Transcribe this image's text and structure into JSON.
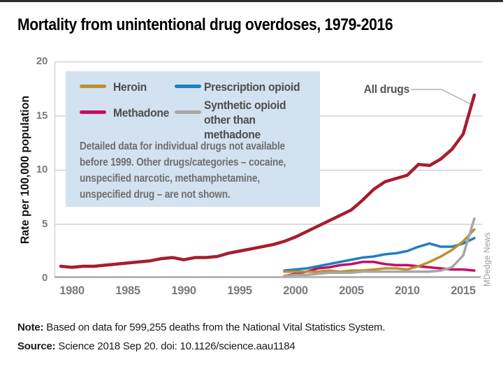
{
  "header": {
    "title": "Mortality from unintentional drug overdoses, 1979-2016"
  },
  "chart_data": {
    "type": "line",
    "title": "Mortality from unintentional drug overdoses, 1979-2016",
    "xlabel": "",
    "ylabel": "Rate per 100,000 population",
    "ylim": [
      0,
      20
    ],
    "y_ticks": [
      0,
      5,
      10,
      15,
      20
    ],
    "x_ticks": [
      1980,
      1985,
      1990,
      1995,
      2000,
      2005,
      2010,
      2015
    ],
    "xlim": [
      1979,
      2016
    ],
    "grid": true,
    "legend_position": "overlay top-left box",
    "annotation": {
      "label": "All drugs"
    },
    "series": [
      {
        "name": "Methadone",
        "color": "#c40d66",
        "start_year": 1999,
        "end_year": 2016,
        "values": [
          0.2,
          0.4,
          0.6,
          0.9,
          1.0,
          1.2,
          1.3,
          1.5,
          1.5,
          1.3,
          1.2,
          1.2,
          1.1,
          1.0,
          0.9,
          0.8,
          0.8,
          0.7
        ]
      },
      {
        "name": "Prescription opioid",
        "color": "#1f7fbf",
        "start_year": 1999,
        "end_year": 2016,
        "values": [
          0.7,
          0.8,
          0.9,
          1.1,
          1.3,
          1.5,
          1.7,
          1.9,
          2.0,
          2.2,
          2.3,
          2.5,
          2.9,
          3.2,
          2.9,
          2.9,
          3.2,
          3.7
        ]
      },
      {
        "name": "Heroin",
        "color": "#b9932f",
        "start_year": 1999,
        "end_year": 2016,
        "values": [
          0.6,
          0.6,
          0.6,
          0.6,
          0.7,
          0.6,
          0.7,
          0.7,
          0.8,
          0.9,
          0.9,
          0.8,
          1.1,
          1.5,
          2.0,
          2.6,
          3.4,
          4.5
        ]
      },
      {
        "name": "Synthetic opioid other than methadone",
        "color": "#a7a7a7",
        "start_year": 1999,
        "end_year": 2016,
        "values": [
          0.2,
          0.3,
          0.3,
          0.4,
          0.5,
          0.5,
          0.5,
          0.6,
          0.6,
          0.6,
          0.6,
          0.6,
          0.6,
          0.6,
          0.7,
          1.0,
          2.1,
          5.5
        ]
      },
      {
        "name": "All drugs",
        "color": "#a51e2d",
        "start_year": 1979,
        "end_year": 2016,
        "values": [
          1.1,
          1.0,
          1.1,
          1.1,
          1.2,
          1.3,
          1.4,
          1.5,
          1.6,
          1.8,
          1.9,
          1.7,
          1.9,
          1.9,
          2.0,
          2.3,
          2.5,
          2.7,
          2.9,
          3.1,
          3.4,
          3.8,
          4.3,
          4.8,
          5.3,
          5.8,
          6.3,
          7.2,
          8.2,
          8.9,
          9.2,
          9.5,
          10.5,
          10.4,
          11.0,
          11.9,
          13.3,
          16.9
        ]
      }
    ]
  },
  "legend": {
    "items": [
      {
        "label": "Heroin",
        "color": "#b9932f"
      },
      {
        "label": "Methadone",
        "color": "#c40d66"
      },
      {
        "label": "Prescription opioid",
        "color": "#1f7fbf"
      },
      {
        "label": "Synthetic opioid\nother than methadone",
        "color": "#a7a7a7"
      }
    ],
    "note": "Detailed data for individual drugs not available\nbefore 1999. Other drugs/categories – cocaine,\nunspecified narcotic, methamphetamine,\nunspecified drug – are not shown."
  },
  "notes": {
    "note_label": "Note:",
    "note_text": " Based on data for 599,255 deaths from the National Vital Statistics System.",
    "source_label": "Source:",
    "source_text": " Science 2018 Sep 20. doi: 10.1126/science.aau1184"
  },
  "credit": "MDedge News",
  "colors": {
    "legend_background": "#d2e2f0",
    "gridline": "#cbcbcb",
    "axis": "#b5b5b5",
    "tick_text": "#7a7a7a",
    "callout": "#b3b3b3"
  }
}
